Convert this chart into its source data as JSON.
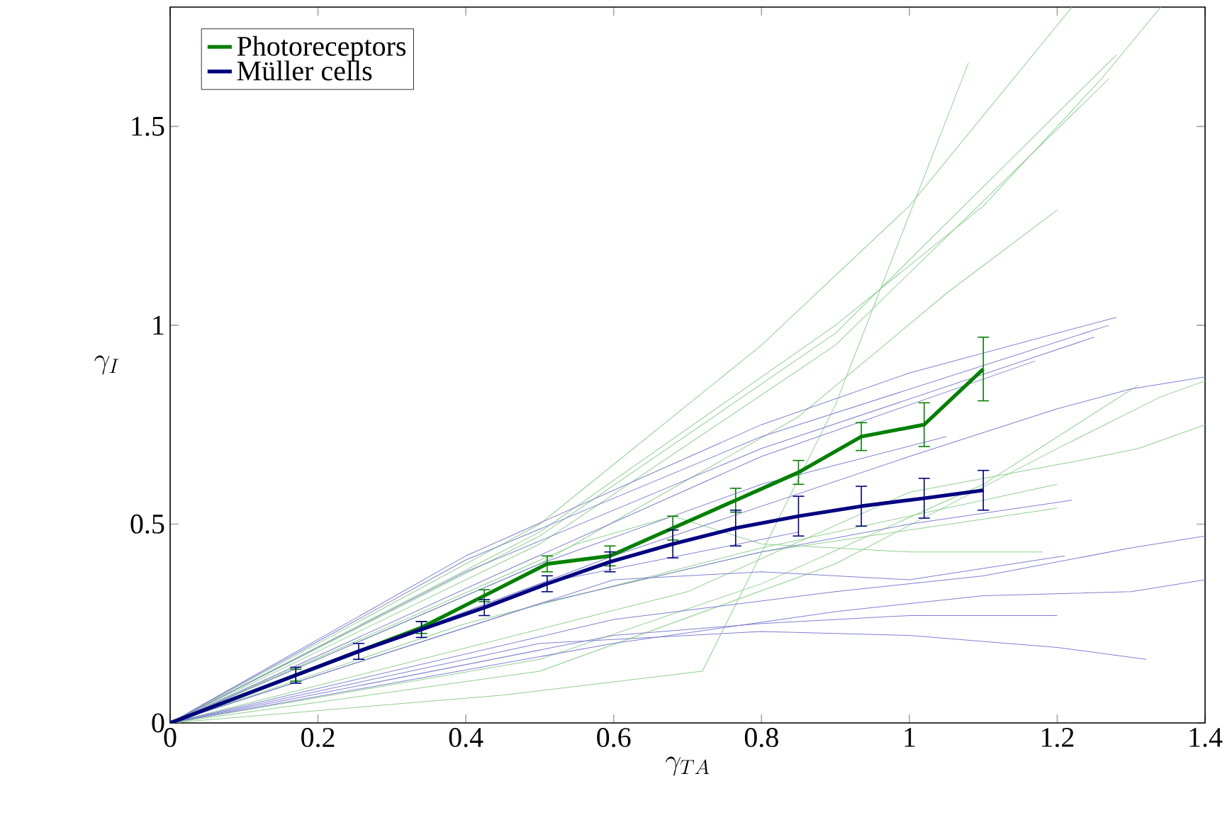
{
  "chart_data": {
    "type": "line",
    "xlabel": "\\gamma_{TA}",
    "ylabel": "\\gamma_{I}",
    "xlim": [
      0,
      1.4
    ],
    "ylim": [
      0,
      1.8
    ],
    "xticks": [
      0,
      0.2,
      0.4,
      0.6,
      0.8,
      1,
      1.2,
      1.4
    ],
    "yticks": [
      0,
      0.5,
      1,
      1.5
    ],
    "legend": "top left",
    "marker": "none",
    "line_style": "solid",
    "series": [
      {
        "color": "#8fd08f",
        "x": [
          0,
          0.45,
          0.72,
          0.9,
          1.08
        ],
        "values": [
          0,
          0.07,
          0.13,
          0.8,
          1.66
        ]
      },
      {
        "color": "#8fd08f",
        "x": [
          0,
          0.5,
          0.8,
          1.0,
          1.22
        ],
        "values": [
          0,
          0.5,
          0.95,
          1.3,
          1.8
        ]
      },
      {
        "color": "#8fd08f",
        "x": [
          0,
          0.5,
          0.9,
          1.1,
          1.26,
          1.34
        ],
        "values": [
          0,
          0.48,
          1.0,
          1.3,
          1.62,
          1.8
        ]
      },
      {
        "color": "#8fd08f",
        "x": [
          0,
          0.5,
          0.9,
          1.28
        ],
        "values": [
          0,
          0.47,
          0.98,
          1.68
        ]
      },
      {
        "color": "#8fd08f",
        "x": [
          0,
          0.5,
          0.9,
          1.27
        ],
        "values": [
          0,
          0.45,
          0.95,
          1.62
        ]
      },
      {
        "color": "#8fd08f",
        "x": [
          0,
          0.5,
          0.85,
          1.05,
          1.2
        ],
        "values": [
          0,
          0.4,
          0.77,
          1.08,
          1.29
        ]
      },
      {
        "color": "#8fd08f",
        "x": [
          0,
          0.7,
          1.0,
          1.23,
          1.31,
          1.4
        ],
        "values": [
          0,
          0.33,
          0.58,
          0.66,
          0.69,
          0.75
        ]
      },
      {
        "color": "#8fd08f",
        "x": [
          0,
          0.5,
          0.8,
          1.1,
          1.31
        ],
        "values": [
          0,
          0.16,
          0.35,
          0.6,
          0.85
        ]
      },
      {
        "color": "#8fd08f",
        "x": [
          0,
          0.5,
          0.9,
          1.2,
          1.34,
          1.4
        ],
        "values": [
          0,
          0.13,
          0.4,
          0.69,
          0.82,
          0.86
        ]
      },
      {
        "color": "#8fd08f",
        "x": [
          0,
          0.4,
          0.8,
          1.2
        ],
        "values": [
          0,
          0.25,
          0.44,
          0.6
        ]
      },
      {
        "color": "#8fd08f",
        "x": [
          0,
          0.5,
          0.8,
          1.2
        ],
        "values": [
          0,
          0.3,
          0.43,
          0.54
        ]
      },
      {
        "color": "#8fd08f",
        "x": [
          0,
          0.55,
          0.68,
          0.8,
          1.0,
          1.18
        ],
        "values": [
          0,
          0.45,
          0.52,
          0.45,
          0.43,
          0.43
        ]
      },
      {
        "color": "#8080d0",
        "x": [
          0,
          0.4,
          0.8,
          1.0,
          1.28
        ],
        "values": [
          0,
          0.42,
          0.75,
          0.88,
          1.02
        ]
      },
      {
        "color": "#8080d0",
        "x": [
          0,
          0.4,
          0.8,
          1.27
        ],
        "values": [
          0,
          0.41,
          0.72,
          1.0
        ]
      },
      {
        "color": "#8080d0",
        "x": [
          0,
          0.4,
          0.8,
          1.25
        ],
        "values": [
          0,
          0.38,
          0.69,
          0.97
        ]
      },
      {
        "color": "#8080d0",
        "x": [
          0,
          0.45,
          0.8,
          1.17
        ],
        "values": [
          0,
          0.38,
          0.67,
          0.91
        ]
      },
      {
        "color": "#8080d0",
        "x": [
          0,
          0.6,
          1.0,
          1.2,
          1.3,
          1.4
        ],
        "values": [
          0,
          0.42,
          0.67,
          0.79,
          0.84,
          0.87
        ]
      },
      {
        "color": "#8080d0",
        "x": [
          0,
          0.5,
          0.8,
          1.05
        ],
        "values": [
          0,
          0.4,
          0.6,
          0.72
        ]
      },
      {
        "color": "#8080d0",
        "x": [
          0,
          0.5,
          0.8,
          1.0,
          1.22
        ],
        "values": [
          0,
          0.3,
          0.43,
          0.5,
          0.56
        ]
      },
      {
        "color": "#8080d0",
        "x": [
          0,
          0.6,
          0.9,
          1.1,
          1.3,
          1.4
        ],
        "values": [
          0,
          0.26,
          0.33,
          0.37,
          0.44,
          0.47
        ]
      },
      {
        "color": "#8080d0",
        "x": [
          0,
          0.6,
          0.8,
          1.0,
          1.21
        ],
        "values": [
          0,
          0.36,
          0.38,
          0.36,
          0.42
        ]
      },
      {
        "color": "#8080d0",
        "x": [
          0,
          0.6,
          0.9,
          1.1,
          1.3,
          1.4
        ],
        "values": [
          0,
          0.2,
          0.28,
          0.32,
          0.33,
          0.36
        ]
      },
      {
        "color": "#8080d0",
        "x": [
          0,
          0.6,
          0.8,
          1.0,
          1.2
        ],
        "values": [
          0,
          0.22,
          0.25,
          0.27,
          0.27
        ]
      },
      {
        "color": "#8080d0",
        "x": [
          0,
          0.5,
          0.8,
          1.0,
          1.2,
          1.32
        ],
        "values": [
          0,
          0.2,
          0.23,
          0.22,
          0.19,
          0.16
        ]
      },
      {
        "color": "#8080d0",
        "x": [
          0,
          0.5,
          0.85
        ],
        "values": [
          0,
          0.35,
          0.48
        ]
      },
      {
        "name": "Photoreceptors",
        "color": "#008000",
        "x": [
          0,
          0.17,
          0.255,
          0.34,
          0.425,
          0.51,
          0.595,
          0.68,
          0.765,
          0.85,
          0.935,
          1.02,
          1.1
        ],
        "values": [
          0,
          0.12,
          0.18,
          0.24,
          0.32,
          0.4,
          0.42,
          0.49,
          0.56,
          0.63,
          0.72,
          0.75,
          0.89
        ],
        "errors": [
          null,
          0.015,
          null,
          0.015,
          0.015,
          0.02,
          0.025,
          0.03,
          0.03,
          0.03,
          0.035,
          0.055,
          0.08
        ]
      },
      {
        "name": "Müller cells",
        "color": "#000080",
        "x": [
          0,
          0.17,
          0.255,
          0.34,
          0.425,
          0.51,
          0.595,
          0.68,
          0.765,
          0.85,
          0.935,
          1.02,
          1.1
        ],
        "values": [
          0,
          0.12,
          0.18,
          0.235,
          0.29,
          0.35,
          0.405,
          0.45,
          0.49,
          0.52,
          0.545,
          0.565,
          0.585
        ],
        "errors": [
          null,
          0.02,
          0.02,
          0.02,
          0.02,
          0.02,
          0.025,
          0.035,
          0.045,
          0.05,
          0.05,
          0.05,
          0.05
        ]
      }
    ]
  }
}
